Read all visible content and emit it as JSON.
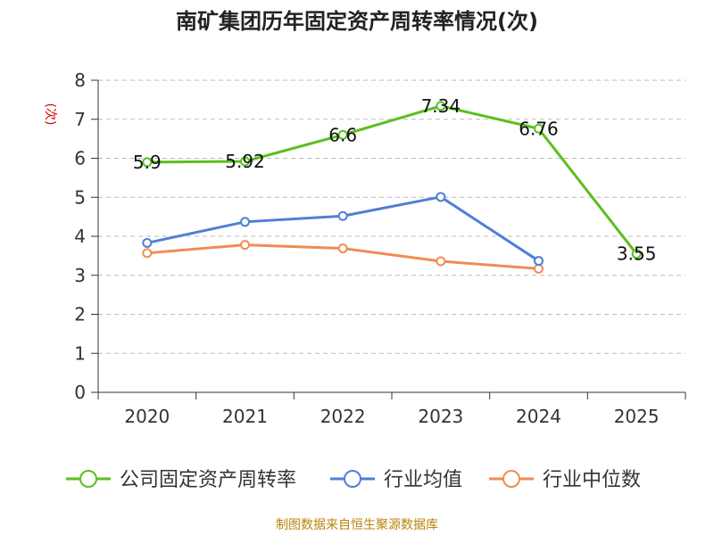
{
  "chart_data": {
    "type": "line",
    "title": "南矿集团历年固定资产周转率情况(次)",
    "ylabel": "(次)",
    "ylim": [
      0,
      8
    ],
    "y_ticks": [
      0,
      1,
      2,
      3,
      4,
      5,
      6,
      7,
      8
    ],
    "categories": [
      "2020",
      "2021",
      "2022",
      "2023",
      "2024",
      "2025"
    ],
    "grid": true,
    "legend_position": "bottom",
    "series": [
      {
        "name": "公司固定资产周转率",
        "color": "#5cbf1e",
        "values": [
          5.9,
          5.92,
          6.6,
          7.34,
          6.76,
          3.55
        ],
        "labels": [
          "5.9",
          "5.92",
          "6.6",
          "7.34",
          "6.76",
          "3.55"
        ]
      },
      {
        "name": "行业均值",
        "color": "#4f7fd6",
        "values": [
          3.83,
          4.37,
          4.52,
          5.01,
          3.37,
          null
        ]
      },
      {
        "name": "行业中位数",
        "color": "#f28b52",
        "values": [
          3.57,
          3.78,
          3.69,
          3.36,
          3.17,
          null
        ]
      }
    ]
  },
  "source_text": "制图数据来自恒生聚源数据库"
}
